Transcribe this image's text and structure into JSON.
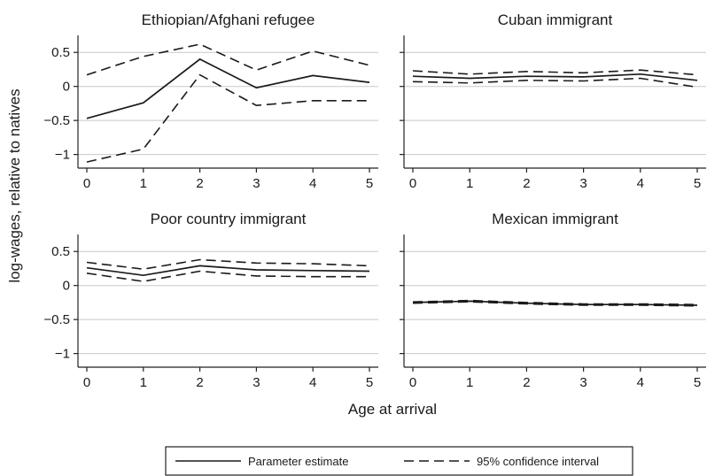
{
  "figure": {
    "ylabel": "log-wages, relative to natives",
    "xlabel": "Age at arrival"
  },
  "legend": {
    "estimate_label": "Parameter estimate",
    "ci_label": "95% confidence interval"
  },
  "chart_data": [
    {
      "type": "line",
      "title": "Ethiopian/Afghani refugee",
      "x": [
        0,
        1,
        2,
        3,
        4,
        5
      ],
      "xlim": [
        0,
        5
      ],
      "ylim": [
        -1.2,
        0.75
      ],
      "yticks": [
        0.5,
        0,
        -0.5,
        -1
      ],
      "ytick_labels": [
        "0.5",
        "0",
        "−0.5",
        "−1"
      ],
      "show_ytick_labels": true,
      "series": [
        {
          "name": "Parameter estimate",
          "style": "solid",
          "values": [
            -0.47,
            -0.24,
            0.4,
            -0.02,
            0.16,
            0.06
          ]
        },
        {
          "name": "95% confidence interval",
          "style": "dashed",
          "values": [
            0.17,
            0.44,
            0.62,
            0.24,
            0.52,
            0.31
          ]
        },
        {
          "name": "95% confidence interval",
          "style": "dashed",
          "values": [
            -1.11,
            -0.92,
            0.17,
            -0.28,
            -0.21,
            -0.21
          ]
        }
      ]
    },
    {
      "type": "line",
      "title": "Cuban immigrant",
      "x": [
        0,
        1,
        2,
        3,
        4,
        5
      ],
      "xlim": [
        0,
        5
      ],
      "ylim": [
        -1.2,
        0.75
      ],
      "yticks": [
        0.5,
        0,
        -0.5,
        -1
      ],
      "show_ytick_labels": false,
      "series": [
        {
          "name": "Parameter estimate",
          "style": "solid",
          "values": [
            0.15,
            0.12,
            0.15,
            0.14,
            0.18,
            0.09
          ]
        },
        {
          "name": "95% confidence interval",
          "style": "dashed",
          "values": [
            0.23,
            0.18,
            0.22,
            0.2,
            0.24,
            0.17
          ]
        },
        {
          "name": "95% confidence interval",
          "style": "dashed",
          "values": [
            0.07,
            0.05,
            0.09,
            0.08,
            0.12,
            -0.01
          ]
        }
      ]
    },
    {
      "type": "line",
      "title": "Poor country immigrant",
      "x": [
        0,
        1,
        2,
        3,
        4,
        5
      ],
      "xlim": [
        0,
        5
      ],
      "ylim": [
        -1.2,
        0.75
      ],
      "yticks": [
        0.5,
        0,
        -0.5,
        -1
      ],
      "ytick_labels": [
        "0.5",
        "0",
        "−0.5",
        "−1"
      ],
      "show_ytick_labels": true,
      "series": [
        {
          "name": "Parameter estimate",
          "style": "solid",
          "values": [
            0.26,
            0.15,
            0.29,
            0.23,
            0.22,
            0.21
          ]
        },
        {
          "name": "95% confidence interval",
          "style": "dashed",
          "values": [
            0.34,
            0.24,
            0.38,
            0.33,
            0.32,
            0.29
          ]
        },
        {
          "name": "95% confidence interval",
          "style": "dashed",
          "values": [
            0.18,
            0.06,
            0.21,
            0.14,
            0.13,
            0.13
          ]
        }
      ]
    },
    {
      "type": "line",
      "title": "Mexican immigrant",
      "x": [
        0,
        1,
        2,
        3,
        4,
        5
      ],
      "xlim": [
        0,
        5
      ],
      "ylim": [
        -1.2,
        0.75
      ],
      "yticks": [
        0.5,
        0,
        -0.5,
        -1
      ],
      "show_ytick_labels": false,
      "series": [
        {
          "name": "Parameter estimate",
          "style": "solid",
          "values": [
            -0.25,
            -0.23,
            -0.26,
            -0.28,
            -0.28,
            -0.29
          ]
        },
        {
          "name": "95% confidence interval",
          "style": "dashed",
          "values": [
            -0.24,
            -0.22,
            -0.25,
            -0.27,
            -0.27,
            -0.28
          ]
        },
        {
          "name": "95% confidence interval",
          "style": "dashed",
          "values": [
            -0.26,
            -0.24,
            -0.27,
            -0.29,
            -0.29,
            -0.3
          ]
        }
      ]
    }
  ]
}
